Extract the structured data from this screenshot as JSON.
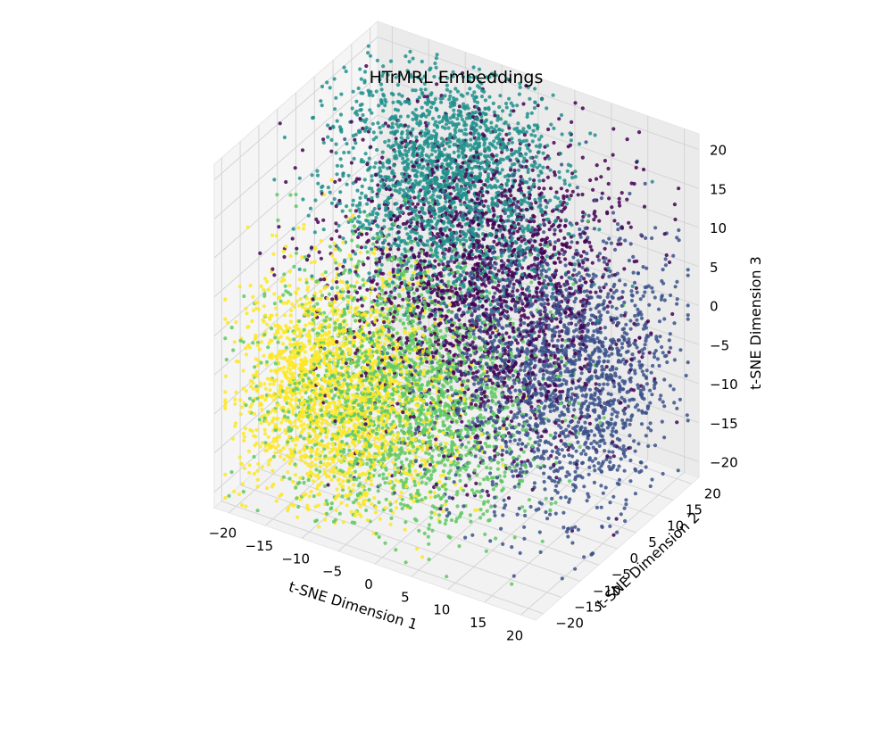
{
  "chart_data": {
    "type": "scatter",
    "projection": "3d",
    "title": "HTrMRL Embeddings",
    "xlabel": "t-SNE Dimension 1",
    "ylabel": "t-SNE Dimension 2",
    "zlabel": "t-SNE Dimension 3",
    "xlim": [
      -22,
      22
    ],
    "ylim": [
      -22,
      22
    ],
    "zlim": [
      -22,
      22
    ],
    "xticks": [
      "−20",
      "−15",
      "−10",
      "−5",
      "0",
      "5",
      "10",
      "15",
      "20"
    ],
    "yticks": [
      "−20",
      "−15",
      "−10",
      "−5",
      "0",
      "5",
      "10",
      "15",
      "20"
    ],
    "zticks": [
      "−20",
      "−15",
      "−10",
      "−5",
      "0",
      "5",
      "10",
      "15",
      "20"
    ],
    "grid": true,
    "colormap": "viridis",
    "approx_point_count": 10000,
    "clusters": [
      {
        "color": "#440154",
        "center": [
          2,
          4,
          4
        ],
        "spread": 9
      },
      {
        "color": "#3b528b",
        "center": [
          12,
          4,
          -4
        ],
        "spread": 8
      },
      {
        "color": "#21918c",
        "center": [
          -6,
          10,
          12
        ],
        "spread": 7
      },
      {
        "color": "#5ec962",
        "center": [
          -4,
          -6,
          -8
        ],
        "spread": 8
      },
      {
        "color": "#fde725",
        "center": [
          -12,
          -8,
          -10
        ],
        "spread": 7
      }
    ]
  }
}
